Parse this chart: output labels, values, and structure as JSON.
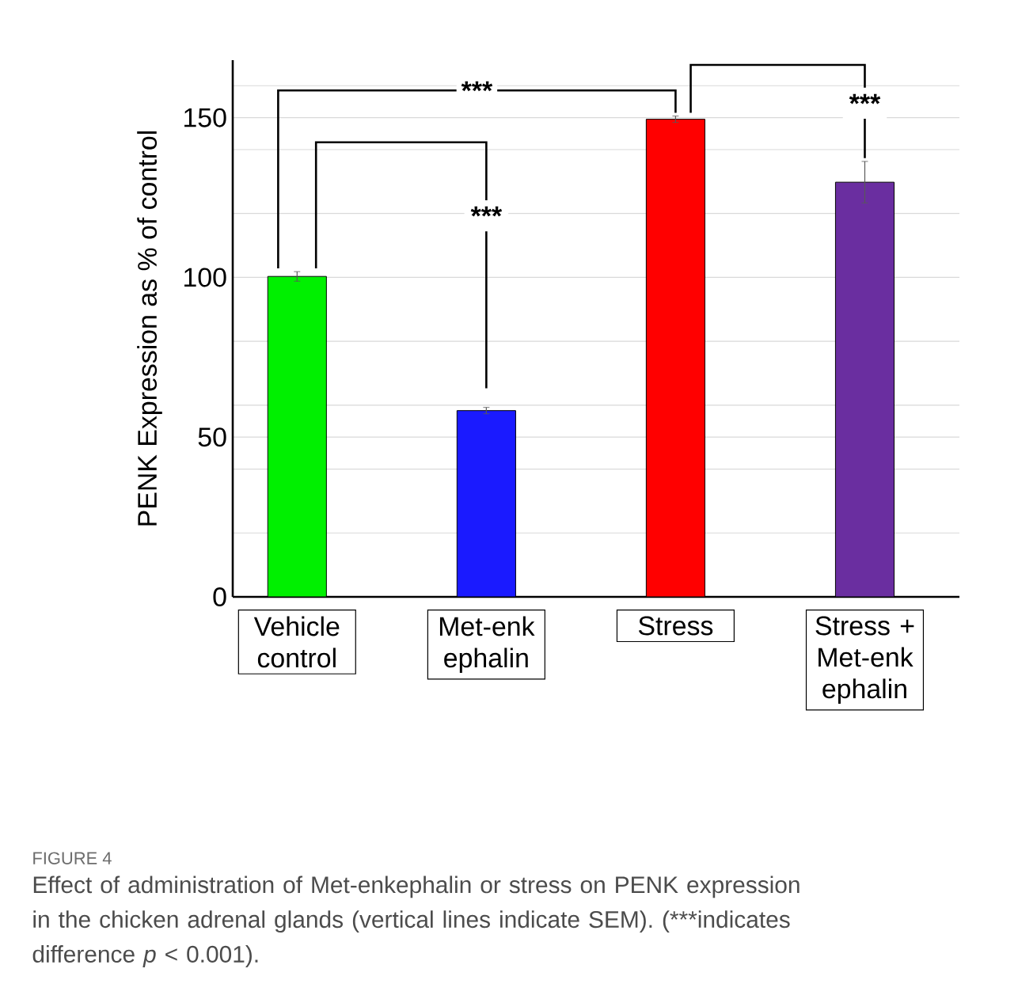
{
  "chart_data": {
    "type": "bar",
    "ylabel": "PENK Expression as % of control",
    "categories": [
      "Vehicle control",
      "Met-enk ephalin",
      "Stress",
      "Stress + Met-enk ephalin"
    ],
    "values": [
      100.3,
      58.3,
      149.5,
      129.8
    ],
    "errors": [
      1.5,
      1,
      1,
      6.5
    ],
    "colors": [
      "#00f000",
      "#1a1aff",
      "#ff0000",
      "#6a2ea0"
    ],
    "ylim": [
      0,
      168
    ],
    "yticks": [
      0,
      {
        "value": 20,
        "label": null
      },
      {
        "value": 40,
        "label": null
      },
      50,
      {
        "value": 60,
        "label": null
      },
      {
        "value": 80,
        "label": null
      },
      100,
      {
        "value": 120,
        "label": null
      },
      {
        "value": 140,
        "label": null
      },
      150,
      {
        "value": 160,
        "label": null
      }
    ],
    "grid": "y",
    "annotations": [
      "***",
      "***",
      "***",
      "FIGURE 4",
      "Effect of administration of Met-enkephalin or stress on PENK expression in the chicken adrenal glands (vertical lines indicate SEM). (***indicates difference *p* <  0.001)."
    ]
  }
}
